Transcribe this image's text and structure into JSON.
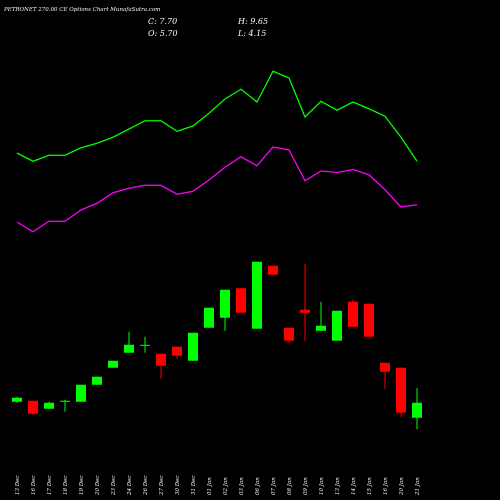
{
  "chart_data": {
    "type": "candlestick",
    "title": "PETRONET 270.00 CE Options  Chart MunafaSutra.com",
    "header": [
      "C: 7.70",
      "O: 5.70",
      "H: 9.65",
      "L: 4.15"
    ],
    "categories": [
      "13 Dec",
      "16 Dec",
      "17 Dec",
      "18 Dec",
      "19 Dec",
      "20 Dec",
      "23 Dec",
      "24 Dec",
      "26 Dec",
      "27 Dec",
      "30 Dec",
      "31 Dec",
      "01 Jan",
      "02 Jan",
      "03 Jan",
      "06 Jan",
      "07 Jan",
      "08 Jan",
      "09 Jan",
      "10 Jan",
      "13 Jan",
      "14 Jan",
      "15 Jan",
      "16 Jan",
      "20 Jan",
      "21 Jan"
    ],
    "open": [
      7.83,
      7.97,
      6.9,
      7.83,
      7.83,
      10.1,
      12.37,
      14.37,
      15.3,
      14.23,
      15.17,
      13.3,
      17.7,
      19.03,
      22.97,
      17.57,
      25.97,
      17.7,
      20.1,
      17.3,
      15.97,
      21.17,
      20.9,
      13.03,
      12.37,
      5.7
    ],
    "high": [
      8.5,
      7.97,
      7.83,
      8.1,
      10.1,
      11.17,
      13.3,
      17.17,
      16.5,
      14.23,
      15.17,
      17.03,
      20.37,
      22.77,
      22.97,
      26.5,
      25.97,
      17.7,
      26.23,
      21.17,
      19.97,
      21.43,
      20.9,
      13.03,
      12.37,
      9.65
    ],
    "low": [
      7.7,
      6.1,
      6.9,
      6.5,
      7.83,
      10.1,
      12.37,
      14.37,
      14.37,
      10.9,
      13.57,
      13.3,
      17.7,
      17.3,
      19.7,
      17.57,
      24.77,
      15.7,
      15.97,
      17.3,
      15.97,
      17.83,
      16.5,
      9.57,
      5.83,
      4.15
    ],
    "close": [
      8.37,
      6.23,
      7.7,
      7.97,
      10.1,
      11.17,
      13.3,
      15.43,
      15.43,
      12.63,
      13.97,
      17.03,
      20.37,
      22.77,
      19.7,
      26.5,
      24.77,
      15.97,
      19.7,
      17.97,
      19.97,
      17.83,
      16.5,
      11.83,
      6.37,
      7.7
    ],
    "up_color": "#00ff00",
    "down_color": "#ff0000",
    "overlays": [
      {
        "color": "#00ff00",
        "values": [
          41.0,
          39.9,
          40.7,
          40.7,
          41.7,
          42.3,
          43.1,
          44.2,
          45.3,
          45.3,
          43.9,
          44.6,
          46.3,
          48.2,
          49.5,
          47.8,
          51.9,
          51.0,
          45.8,
          47.9,
          46.7,
          47.8,
          46.9,
          45.9,
          43.1,
          39.9
        ]
      },
      {
        "color": "#ff00ff",
        "values": [
          31.8,
          30.5,
          31.9,
          31.9,
          33.4,
          34.3,
          35.7,
          36.3,
          36.7,
          36.7,
          35.5,
          35.9,
          37.4,
          39.1,
          40.5,
          39.3,
          41.8,
          41.4,
          37.3,
          38.6,
          38.4,
          38.8,
          38.1,
          36.1,
          33.8,
          34.1
        ]
      }
    ],
    "ylim": [
      -5,
      61
    ]
  }
}
